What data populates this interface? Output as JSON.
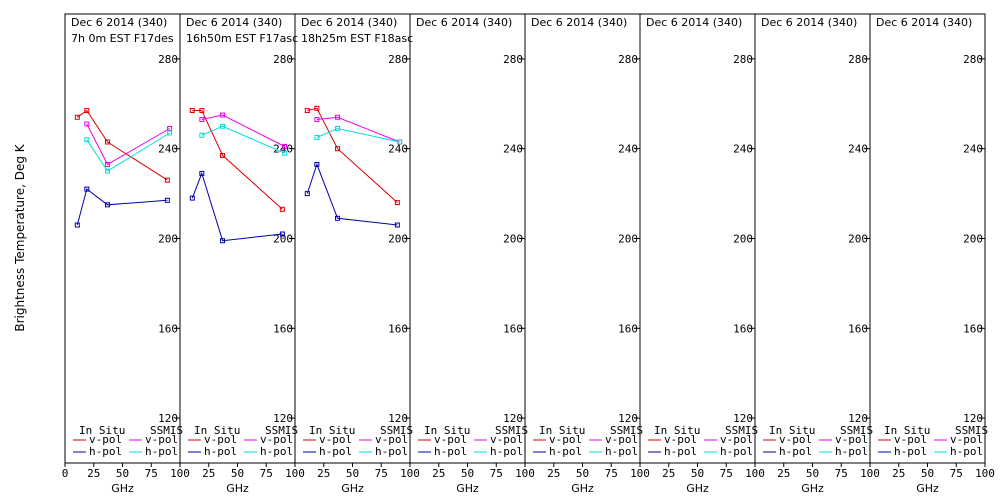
{
  "y_axis_label": "Brightness Temperature, Deg K",
  "x_axis_label": "GHz",
  "legend": {
    "insitu_label": "In Situ",
    "ssmis_label": "SSMIS",
    "vpol_label": "v-pol",
    "hpol_label": "h-pol"
  },
  "colors": {
    "insitu_v": "#dd0000",
    "insitu_h": "#0000aa",
    "ssmis_v": "#ee00ee",
    "ssmis_h": "#00dddd"
  },
  "chart_data": [
    {
      "type": "line",
      "title": "Dec 6 2014 (340)",
      "subtitle": "7h 0m  EST F17des",
      "xlim": [
        0,
        100
      ],
      "ylim": [
        100,
        300
      ],
      "xticks": [
        0,
        25,
        50,
        75,
        100
      ],
      "yticks": [
        120,
        160,
        200,
        240,
        280
      ],
      "series": [
        {
          "key": "insitu_v",
          "name": "v-pol",
          "x": [
            10.7,
            19,
            37,
            89
          ],
          "y": [
            254,
            257,
            243,
            226
          ]
        },
        {
          "key": "insitu_h",
          "name": "h-pol",
          "x": [
            10.7,
            19,
            37,
            89
          ],
          "y": [
            206,
            222,
            215,
            217
          ]
        },
        {
          "key": "ssmis_v",
          "name": "v-pol",
          "x": [
            19,
            37,
            91
          ],
          "y": [
            251,
            233,
            249
          ]
        },
        {
          "key": "ssmis_h",
          "name": "h-pol",
          "x": [
            19,
            37,
            91
          ],
          "y": [
            244,
            230,
            247
          ]
        }
      ]
    },
    {
      "type": "line",
      "title": "Dec 6 2014 (340)",
      "subtitle": "16h50m  EST F17asc",
      "xlim": [
        0,
        100
      ],
      "ylim": [
        100,
        300
      ],
      "xticks": [
        25,
        50,
        75,
        100
      ],
      "yticks": [
        120,
        160,
        200,
        240,
        280
      ],
      "series": [
        {
          "key": "insitu_v",
          "name": "v-pol",
          "x": [
            10.7,
            19,
            37,
            89
          ],
          "y": [
            257,
            257,
            237,
            213
          ]
        },
        {
          "key": "insitu_h",
          "name": "h-pol",
          "x": [
            10.7,
            19,
            37,
            89
          ],
          "y": [
            218,
            229,
            199,
            202
          ]
        },
        {
          "key": "ssmis_v",
          "name": "v-pol",
          "x": [
            19,
            37,
            91
          ],
          "y": [
            253,
            255,
            241
          ]
        },
        {
          "key": "ssmis_h",
          "name": "h-pol",
          "x": [
            19,
            37,
            91
          ],
          "y": [
            246,
            250,
            238
          ]
        }
      ]
    },
    {
      "type": "line",
      "title": "Dec 6 2014 (340)",
      "subtitle": "18h25m  EST F18asc",
      "xlim": [
        0,
        100
      ],
      "ylim": [
        100,
        300
      ],
      "xticks": [
        25,
        50,
        75,
        100
      ],
      "yticks": [
        120,
        160,
        200,
        240,
        280
      ],
      "series": [
        {
          "key": "insitu_v",
          "name": "v-pol",
          "x": [
            10.7,
            19,
            37,
            89
          ],
          "y": [
            257,
            258,
            240,
            216
          ]
        },
        {
          "key": "insitu_h",
          "name": "h-pol",
          "x": [
            10.7,
            19,
            37,
            89
          ],
          "y": [
            220,
            233,
            209,
            206
          ]
        },
        {
          "key": "ssmis_v",
          "name": "v-pol",
          "x": [
            19,
            37,
            91
          ],
          "y": [
            253,
            254,
            243
          ]
        },
        {
          "key": "ssmis_h",
          "name": "h-pol",
          "x": [
            19,
            37,
            91
          ],
          "y": [
            245,
            249,
            243
          ]
        }
      ]
    },
    {
      "type": "line",
      "title": "Dec 6 2014 (340)",
      "subtitle": "",
      "xlim": [
        0,
        100
      ],
      "ylim": [
        100,
        300
      ],
      "xticks": [
        25,
        50,
        75,
        100
      ],
      "yticks": [
        120,
        160,
        200,
        240,
        280
      ],
      "series": []
    },
    {
      "type": "line",
      "title": "Dec 6 2014 (340)",
      "subtitle": "",
      "xlim": [
        0,
        100
      ],
      "ylim": [
        100,
        300
      ],
      "xticks": [
        25,
        50,
        75,
        100
      ],
      "yticks": [
        120,
        160,
        200,
        240,
        280
      ],
      "series": []
    },
    {
      "type": "line",
      "title": "Dec 6 2014 (340)",
      "subtitle": "",
      "xlim": [
        0,
        100
      ],
      "ylim": [
        100,
        300
      ],
      "xticks": [
        25,
        50,
        75,
        100
      ],
      "yticks": [
        120,
        160,
        200,
        240,
        280
      ],
      "series": []
    },
    {
      "type": "line",
      "title": "Dec 6 2014 (340)",
      "subtitle": "",
      "xlim": [
        0,
        100
      ],
      "ylim": [
        100,
        300
      ],
      "xticks": [
        25,
        50,
        75,
        100
      ],
      "yticks": [
        120,
        160,
        200,
        240,
        280
      ],
      "series": []
    },
    {
      "type": "line",
      "title": "Dec 6 2014 (340)",
      "subtitle": "",
      "xlim": [
        0,
        100
      ],
      "ylim": [
        100,
        300
      ],
      "xticks": [
        25,
        50,
        75,
        100
      ],
      "yticks": [
        120,
        160,
        200,
        240,
        280
      ],
      "series": []
    }
  ]
}
